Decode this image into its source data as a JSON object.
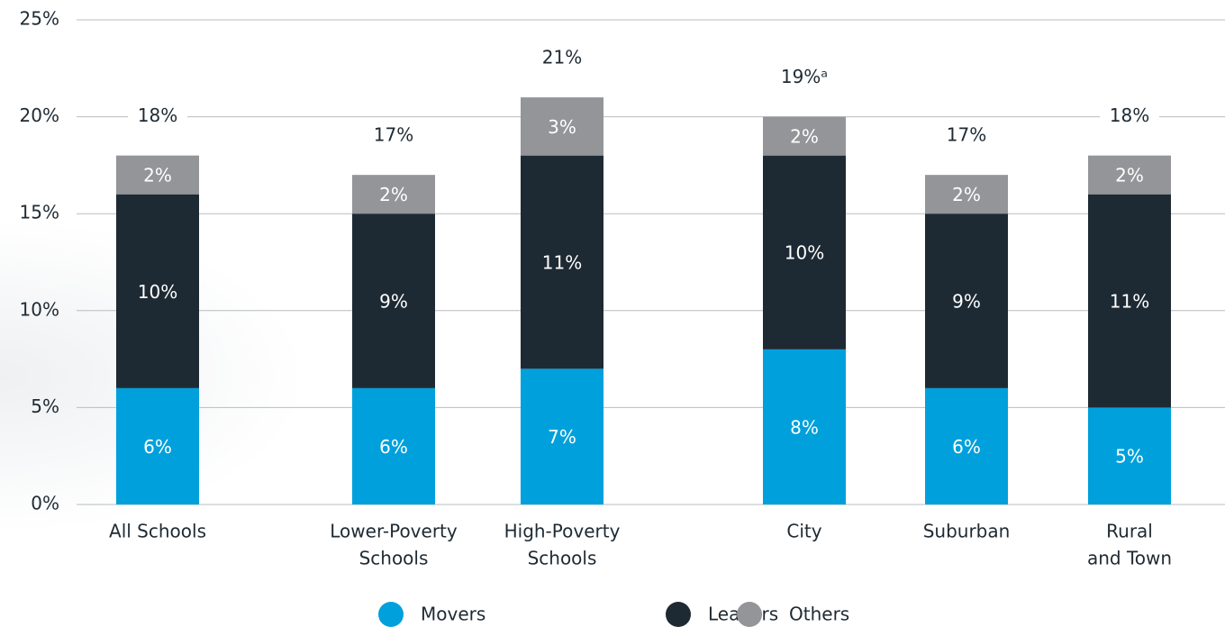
{
  "chart_data": {
    "type": "stacked_bar",
    "categories": [
      [
        "All Schools"
      ],
      [
        "Lower-Poverty",
        "Schools"
      ],
      [
        "High-Poverty",
        "Schools"
      ],
      [
        "City"
      ],
      [
        "Suburban"
      ],
      [
        "Rural",
        "and Town"
      ]
    ],
    "series": [
      {
        "name": "Movers",
        "color": "#00a0dc",
        "values": [
          6,
          6,
          7,
          8,
          6,
          5
        ],
        "value_labels": [
          "6%",
          "6%",
          "7%",
          "8%",
          "6%",
          "5%"
        ]
      },
      {
        "name": "Leavers",
        "color": "#1e2a33",
        "values": [
          10,
          9,
          11,
          10,
          9,
          11
        ],
        "value_labels": [
          "10%",
          "9%",
          "11%",
          "10%",
          "9%",
          "11%"
        ]
      },
      {
        "name": "Others",
        "color": "#939598",
        "values": [
          2,
          2,
          3,
          2,
          2,
          2
        ],
        "value_labels": [
          "2%",
          "2%",
          "3%",
          "2%",
          "2%",
          "2%"
        ]
      }
    ],
    "totals": [
      18,
      17,
      21,
      19,
      17,
      18
    ],
    "total_labels": [
      "18%",
      "17%",
      "21%",
      "19%ᵃ",
      "17%",
      "18%"
    ],
    "ylim": [
      0,
      25
    ],
    "yticks": [
      {
        "value": 0,
        "label": "0%"
      },
      {
        "value": 5,
        "label": "5%"
      },
      {
        "value": 10,
        "label": "10%"
      },
      {
        "value": 15,
        "label": "15%"
      },
      {
        "value": 20,
        "label": "20%"
      },
      {
        "value": 25,
        "label": "25%"
      }
    ],
    "grid": true,
    "legend": "bottom"
  }
}
